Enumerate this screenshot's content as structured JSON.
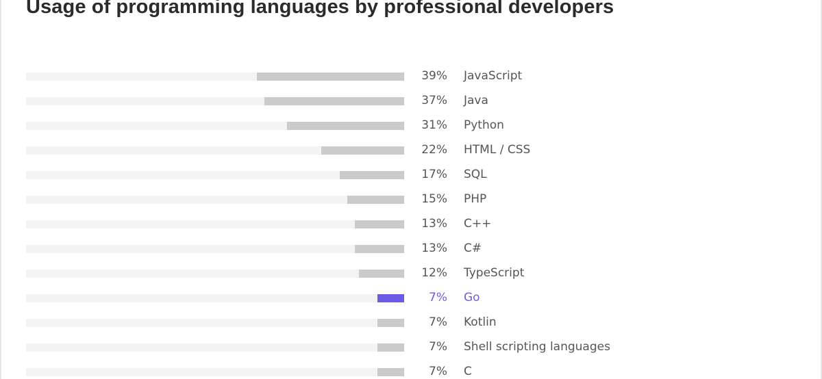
{
  "chart_data": {
    "type": "bar",
    "orientation": "horizontal",
    "title": "Usage of programming languages by professional developers",
    "xlim": [
      0,
      100
    ],
    "unit": "%",
    "highlight_color": "#6b5ce7",
    "bar_color": "#cbcbcb",
    "track_color": "#f3f3f3",
    "highlight_category": "Go",
    "categories": [
      "JavaScript",
      "Java",
      "Python",
      "HTML / CSS",
      "SQL",
      "PHP",
      "C++",
      "C#",
      "TypeScript",
      "Go",
      "Kotlin",
      "Shell scripting languages",
      "C"
    ],
    "values": [
      39,
      37,
      31,
      22,
      17,
      15,
      13,
      13,
      12,
      7,
      7,
      7,
      7
    ],
    "value_labels": [
      "39%",
      "37%",
      "31%",
      "22%",
      "17%",
      "15%",
      "13%",
      "13%",
      "12%",
      "7%",
      "7%",
      "7%",
      "7%"
    ]
  }
}
